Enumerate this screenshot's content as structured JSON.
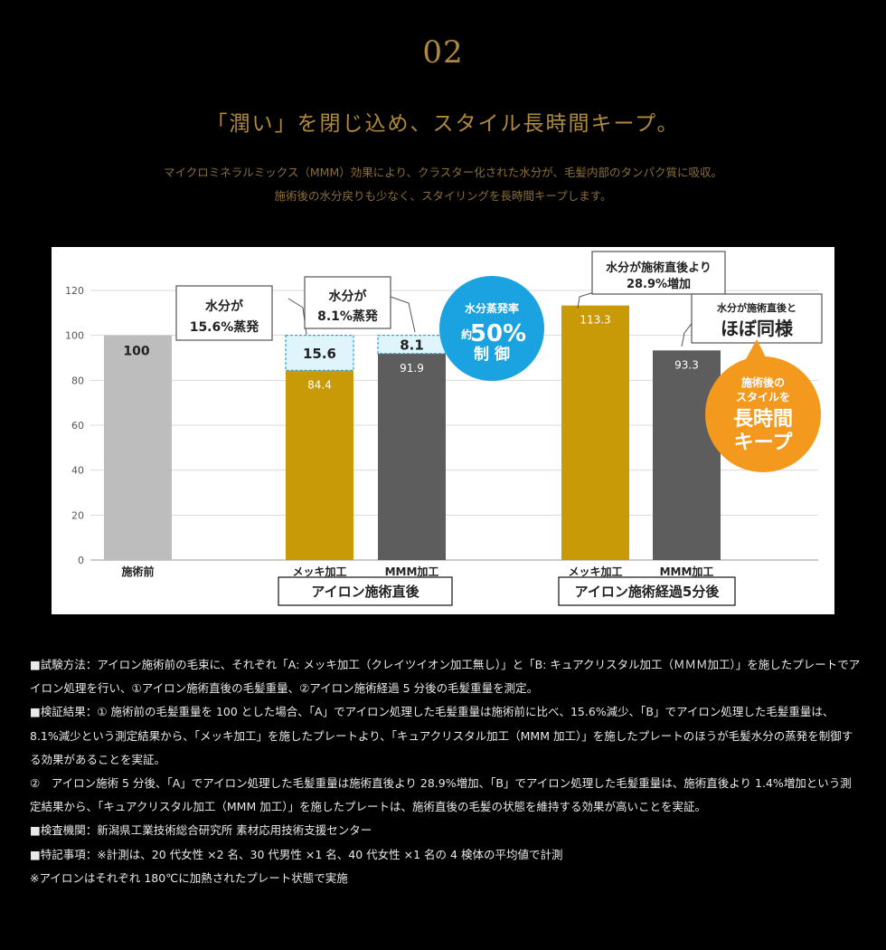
{
  "section": {
    "number": "02",
    "headline": "「潤い」を閉じ込め、スタイル長時間キープ。",
    "intro_lines": [
      "マイクロミネラルミックス（MMM）効果により、クラスター化された水分が、毛髪内部のタンパク質に吸収。",
      "施術後の水分戻りも少なく、スタイリングを長時間キープします。"
    ]
  },
  "chart_data": {
    "type": "bar",
    "categories": [
      "施術前",
      "メッキ加工",
      "MMM加工",
      "メッキ加工",
      "MMM加工"
    ],
    "values": [
      100,
      84.4,
      91.9,
      113.3,
      93.3
    ],
    "value_labels": [
      "100",
      "84.4",
      "91.9",
      "113.3",
      "93.3"
    ],
    "colors": [
      "#bdbdbd",
      "#c99a08",
      "#5d5d5d",
      "#c99a08",
      "#5d5d5d"
    ],
    "ylim": [
      0,
      120
    ],
    "yticks": [
      "0",
      "20",
      "40",
      "60",
      "80",
      "100",
      "120"
    ],
    "grid": true,
    "groups": [
      "アイロン施術直後",
      "アイロン施術経過5分後"
    ],
    "evaporation": [
      {
        "bar": 1,
        "value": 15.6,
        "label": "15.6"
      },
      {
        "bar": 2,
        "value": 8.1,
        "label": "8.1"
      }
    ],
    "callouts": {
      "mekki_evap": [
        "水分が",
        "15.6%蒸発"
      ],
      "mmm_evap": [
        "水分が",
        "8.1%蒸発"
      ],
      "mekki_increase": [
        "水分が施術直後より",
        "28.9%増加"
      ],
      "mmm_same_small": "水分が施術直後と",
      "mmm_same_large": "ほぼ同様"
    },
    "badge_blue": {
      "line1": "水分蒸発率",
      "prefix": "約",
      "value": "50%",
      "line3": "制 御"
    },
    "badge_orange": {
      "line1": "施術後の",
      "line2": "スタイルを",
      "line3": "長時間",
      "line4": "キープ"
    },
    "accent_colors": {
      "gold": "#c99a08",
      "blue": "#1aa3e0",
      "orange": "#f39a1e",
      "dark": "#5d5d5d",
      "grey": "#bdbdbd"
    }
  },
  "notes": [
    "■試験方法：アイロン施術前の毛束に、それぞれ「A: メッキ加工（クレイツイオン加工無し）」と「B: キュアクリスタル加工（ＭＭＭ加工）」を施したプレートでアイロン処理を行い、①アイロン施術直後の毛髪重量、②アイロン施術経過 5 分後の毛髪重量を測定。",
    "■検証結果：① 施術前の毛髪重量を 100 とした場合、「A」でアイロン処理した毛髪重量は施術前に比べ、15.6%減少、「B」でアイロン処理した毛髪重量は、8.1%減少という測定結果から、「メッキ加工」を施したプレートより、「キュアクリスタル加工（MMM 加工）」を施したプレートのほうが毛髪水分の蒸発を制御する効果があることを実証。",
    "②　アイロン施術 5 分後、「A」でアイロン処理した毛髪重量は施術直後より 28.9%増加、「B」でアイロン処理した毛髪重量は、施術直後より 1.4%増加という測定結果から、「キュアクリスタル加工（MMM 加工）」を施したプレートは、施術直後の毛髪の状態を維持する効果が高いことを実証。",
    "■検査機関：新潟県工業技術総合研究所 素材応用技術支援センター",
    "■特記事項：※計測は、20 代女性 ×2 名、30 代男性 ×1 名、40 代女性 ×1 名の 4 検体の平均値で計測",
    "※アイロンはそれぞれ 180℃に加熱されたプレート状態で実施"
  ]
}
